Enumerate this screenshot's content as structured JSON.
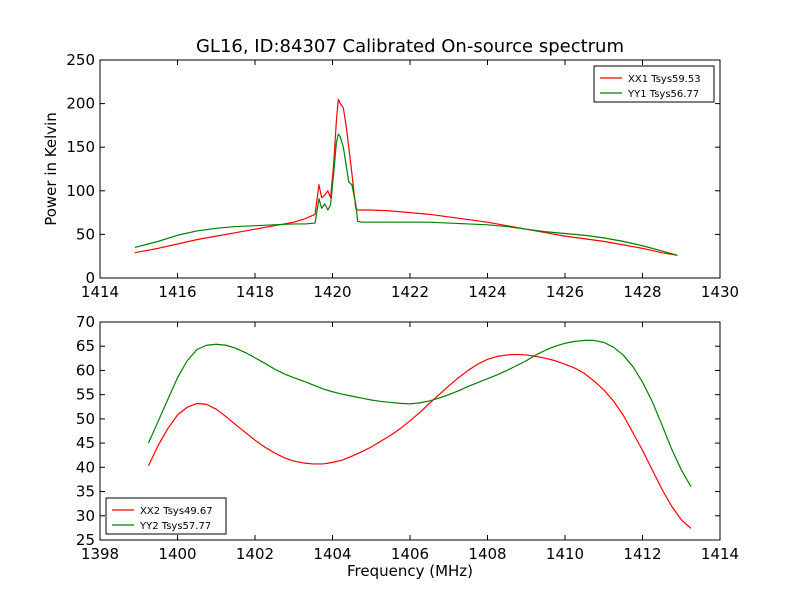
{
  "figure_title": "GL16, ID:84307 Calibrated On-source spectrum",
  "xlabel": "Frequency (MHz)",
  "colors": {
    "red": "#ff0000",
    "green": "#008000"
  },
  "chart_data": [
    {
      "type": "line",
      "title": "GL16, ID:84307 Calibrated On-source spectrum",
      "xlabel": "",
      "ylabel": "Power in Kelvin",
      "xlim": [
        1414,
        1430
      ],
      "ylim": [
        0,
        250
      ],
      "xticks": [
        1414,
        1416,
        1418,
        1420,
        1422,
        1424,
        1426,
        1428,
        1430
      ],
      "yticks": [
        0,
        50,
        100,
        150,
        200,
        250
      ],
      "grid": false,
      "legend_position": "top-right",
      "series": [
        {
          "name": "XX1 Tsys59.53",
          "color": "#ff0000",
          "x": [
            1414.9,
            1415.5,
            1416.0,
            1416.5,
            1417.0,
            1417.5,
            1418.0,
            1418.5,
            1419.0,
            1419.3,
            1419.55,
            1419.65,
            1419.72,
            1419.8,
            1419.88,
            1419.95,
            1420.03,
            1420.1,
            1420.15,
            1420.2,
            1420.28,
            1420.35,
            1420.42,
            1420.5,
            1420.6,
            1420.65,
            1420.75,
            1421.0,
            1421.5,
            1422.0,
            1422.5,
            1423.0,
            1423.5,
            1424.0,
            1424.5,
            1425.0,
            1425.5,
            1426.0,
            1426.5,
            1427.0,
            1427.5,
            1428.0,
            1428.5,
            1428.9
          ],
          "values": [
            29,
            34,
            39,
            44,
            48,
            52,
            56,
            60,
            64,
            68,
            73,
            107,
            92,
            95,
            100,
            92,
            130,
            180,
            205,
            200,
            195,
            175,
            150,
            120,
            80,
            78,
            78,
            78,
            77,
            75,
            73,
            70,
            67,
            64,
            60,
            56,
            52,
            48,
            45,
            42,
            38,
            34,
            29,
            26
          ]
        },
        {
          "name": "YY1 Tsys56.77",
          "color": "#008000",
          "x": [
            1414.9,
            1415.5,
            1416.0,
            1416.5,
            1417.0,
            1417.5,
            1418.0,
            1418.5,
            1419.0,
            1419.3,
            1419.55,
            1419.65,
            1419.72,
            1419.8,
            1419.88,
            1419.95,
            1420.03,
            1420.1,
            1420.15,
            1420.2,
            1420.28,
            1420.35,
            1420.42,
            1420.5,
            1420.6,
            1420.65,
            1420.75,
            1421.0,
            1421.5,
            1422.0,
            1422.5,
            1423.0,
            1423.5,
            1424.0,
            1424.5,
            1425.0,
            1425.5,
            1426.0,
            1426.5,
            1427.0,
            1427.5,
            1428.0,
            1428.5,
            1428.9
          ],
          "values": [
            35,
            42,
            49,
            54,
            57,
            59,
            60,
            61,
            62,
            62,
            63,
            91,
            80,
            85,
            78,
            84,
            120,
            155,
            165,
            162,
            150,
            130,
            110,
            107,
            85,
            65,
            64,
            64,
            64,
            64,
            64,
            63,
            62,
            61,
            59,
            56,
            53,
            51,
            49,
            46,
            42,
            37,
            31,
            26
          ]
        }
      ]
    },
    {
      "type": "line",
      "title": "",
      "xlabel": "Frequency (MHz)",
      "ylabel": "",
      "xlim": [
        1398,
        1414
      ],
      "ylim": [
        25,
        70
      ],
      "xticks": [
        1398,
        1400,
        1402,
        1404,
        1406,
        1408,
        1410,
        1412,
        1414
      ],
      "yticks": [
        25,
        30,
        35,
        40,
        45,
        50,
        55,
        60,
        65,
        70
      ],
      "grid": false,
      "legend_position": "bottom-left",
      "series": [
        {
          "name": "XX2 Tsys49.67",
          "color": "#ff0000",
          "x": [
            1399.25,
            1399.5,
            1399.75,
            1400.0,
            1400.25,
            1400.5,
            1400.75,
            1401.0,
            1401.25,
            1401.5,
            1401.75,
            1402.0,
            1402.25,
            1402.5,
            1402.75,
            1403.0,
            1403.25,
            1403.5,
            1403.75,
            1404.0,
            1404.25,
            1404.5,
            1404.75,
            1405.0,
            1405.25,
            1405.5,
            1405.75,
            1406.0,
            1406.25,
            1406.5,
            1406.75,
            1407.0,
            1407.25,
            1407.5,
            1407.75,
            1408.0,
            1408.25,
            1408.5,
            1408.75,
            1409.0,
            1409.25,
            1409.5,
            1409.75,
            1410.0,
            1410.25,
            1410.5,
            1410.75,
            1411.0,
            1411.25,
            1411.5,
            1411.75,
            1412.0,
            1412.25,
            1412.5,
            1412.75,
            1413.0,
            1413.25
          ],
          "values": [
            40.3,
            44.5,
            48.0,
            50.8,
            52.4,
            53.2,
            53.0,
            52.0,
            50.5,
            48.8,
            47.2,
            45.6,
            44.2,
            43.0,
            42.0,
            41.3,
            40.9,
            40.7,
            40.7,
            41.0,
            41.5,
            42.3,
            43.2,
            44.2,
            45.4,
            46.6,
            48.0,
            49.6,
            51.3,
            53.2,
            55.0,
            56.8,
            58.5,
            60.0,
            61.3,
            62.3,
            62.9,
            63.2,
            63.3,
            63.2,
            62.9,
            62.5,
            62.0,
            61.3,
            60.5,
            59.4,
            57.8,
            56.0,
            53.7,
            50.8,
            47.2,
            43.5,
            39.5,
            35.5,
            32.0,
            29.2,
            27.4
          ]
        },
        {
          "name": "YY2 Tsys57.77",
          "color": "#008000",
          "x": [
            1399.25,
            1399.5,
            1399.75,
            1400.0,
            1400.25,
            1400.5,
            1400.75,
            1401.0,
            1401.25,
            1401.5,
            1401.75,
            1402.0,
            1402.25,
            1402.5,
            1402.75,
            1403.0,
            1403.25,
            1403.5,
            1403.75,
            1404.0,
            1404.25,
            1404.5,
            1404.75,
            1405.0,
            1405.25,
            1405.5,
            1405.75,
            1406.0,
            1406.25,
            1406.5,
            1406.75,
            1407.0,
            1407.25,
            1407.5,
            1407.75,
            1408.0,
            1408.25,
            1408.5,
            1408.75,
            1409.0,
            1409.25,
            1409.5,
            1409.75,
            1410.0,
            1410.25,
            1410.5,
            1410.75,
            1411.0,
            1411.25,
            1411.5,
            1411.75,
            1412.0,
            1412.25,
            1412.5,
            1412.75,
            1413.0,
            1413.25
          ],
          "values": [
            45.0,
            49.5,
            54.0,
            58.5,
            62.0,
            64.3,
            65.2,
            65.4,
            65.2,
            64.6,
            63.7,
            62.6,
            61.5,
            60.3,
            59.3,
            58.5,
            57.8,
            57.0,
            56.2,
            55.6,
            55.1,
            54.7,
            54.3,
            53.9,
            53.6,
            53.4,
            53.2,
            53.1,
            53.3,
            53.7,
            54.3,
            55.0,
            55.8,
            56.7,
            57.5,
            58.3,
            59.1,
            60.0,
            61.0,
            62.0,
            63.2,
            64.2,
            65.0,
            65.6,
            66.0,
            66.2,
            66.2,
            65.8,
            64.8,
            63.2,
            60.8,
            57.6,
            53.6,
            48.8,
            43.8,
            39.5,
            36.0
          ]
        }
      ]
    }
  ]
}
